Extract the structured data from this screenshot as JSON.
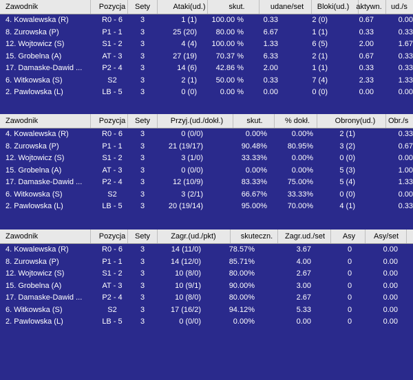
{
  "tables": [
    {
      "headers": [
        "Zawodnik",
        "Pozycja",
        "Sety",
        "Ataki(ud.)",
        "skut.",
        "udane/set",
        "Bloki(ud.)",
        "aktywn.",
        "ud./s"
      ],
      "rows": [
        [
          "4. Kowalewska (R)",
          "R0 - 6",
          "3",
          "1 (1)",
          "100.00 %",
          "0.33",
          "2 (0)",
          "0.67",
          "0.00"
        ],
        [
          "8. Zurowska (P)",
          "P1 - 1",
          "3",
          "25 (20)",
          "80.00 %",
          "6.67",
          "1 (1)",
          "0.33",
          "0.33"
        ],
        [
          "12. Wojtowicz (S)",
          "S1 - 2",
          "3",
          "4 (4)",
          "100.00 %",
          "1.33",
          "6 (5)",
          "2.00",
          "1.67"
        ],
        [
          "15. Grobelna (A)",
          "AT - 3",
          "3",
          "27 (19)",
          "70.37 %",
          "6.33",
          "2 (1)",
          "0.67",
          "0.33"
        ],
        [
          "17. Damaske-Dawid ...",
          "P2 - 4",
          "3",
          "14 (6)",
          "42.86 %",
          "2.00",
          "1 (1)",
          "0.33",
          "0.33"
        ],
        [
          "6. Witkowska (S)",
          "S2",
          "3",
          "2 (1)",
          "50.00 %",
          "0.33",
          "7 (4)",
          "2.33",
          "1.33"
        ],
        [
          "2. Pawlowska (L)",
          "LB - 5",
          "3",
          "0 (0)",
          "0.00 %",
          "0.00",
          "0 (0)",
          "0.00",
          "0.00"
        ]
      ]
    },
    {
      "headers": [
        "Zawodnik",
        "Pozycja",
        "Sety",
        "Przyj.(ud./dokł.)",
        "skut.",
        "% dokł.",
        "Obrony(ud.)",
        "Obr./s"
      ],
      "rows": [
        [
          "4. Kowalewska (R)",
          "R0 - 6",
          "3",
          "0 (0/0)",
          "0.00%",
          "0.00%",
          "2 (1)",
          "0.33"
        ],
        [
          "8. Zurowska (P)",
          "P1 - 1",
          "3",
          "21 (19/17)",
          "90.48%",
          "80.95%",
          "3 (2)",
          "0.67"
        ],
        [
          "12. Wojtowicz (S)",
          "S1 - 2",
          "3",
          "3 (1/0)",
          "33.33%",
          "0.00%",
          "0 (0)",
          "0.00"
        ],
        [
          "15. Grobelna (A)",
          "AT - 3",
          "3",
          "0 (0/0)",
          "0.00%",
          "0.00%",
          "5 (3)",
          "1.00"
        ],
        [
          "17. Damaske-Dawid ...",
          "P2 - 4",
          "3",
          "12 (10/9)",
          "83.33%",
          "75.00%",
          "5 (4)",
          "1.33"
        ],
        [
          "6. Witkowska (S)",
          "S2",
          "3",
          "3 (2/1)",
          "66.67%",
          "33.33%",
          "0 (0)",
          "0.00"
        ],
        [
          "2. Pawlowska (L)",
          "LB - 5",
          "3",
          "20 (19/14)",
          "95.00%",
          "70.00%",
          "4 (1)",
          "0.33"
        ]
      ]
    },
    {
      "headers": [
        "Zawodnik",
        "Pozycja",
        "Sety",
        "Zagr.(ud./pkt)",
        "skuteczn.",
        "Zagr.ud./set",
        "Asy",
        "Asy/set"
      ],
      "rows": [
        [
          "4. Kowalewska (R)",
          "R0 - 6",
          "3",
          "14 (11/0)",
          "78.57%",
          "3.67",
          "0",
          "0.00"
        ],
        [
          "8. Zurowska (P)",
          "P1 - 1",
          "3",
          "14 (12/0)",
          "85.71%",
          "4.00",
          "0",
          "0.00"
        ],
        [
          "12. Wojtowicz (S)",
          "S1 - 2",
          "3",
          "10 (8/0)",
          "80.00%",
          "2.67",
          "0",
          "0.00"
        ],
        [
          "15. Grobelna (A)",
          "AT - 3",
          "3",
          "10 (9/1)",
          "90.00%",
          "3.00",
          "0",
          "0.00"
        ],
        [
          "17. Damaske-Dawid ...",
          "P2 - 4",
          "3",
          "10 (8/0)",
          "80.00%",
          "2.67",
          "0",
          "0.00"
        ],
        [
          "6. Witkowska (S)",
          "S2",
          "3",
          "17 (16/2)",
          "94.12%",
          "5.33",
          "0",
          "0.00"
        ],
        [
          "2. Pawlowska (L)",
          "LB - 5",
          "3",
          "0 (0/0)",
          "0.00%",
          "0.00",
          "0",
          "0.00"
        ]
      ]
    }
  ]
}
